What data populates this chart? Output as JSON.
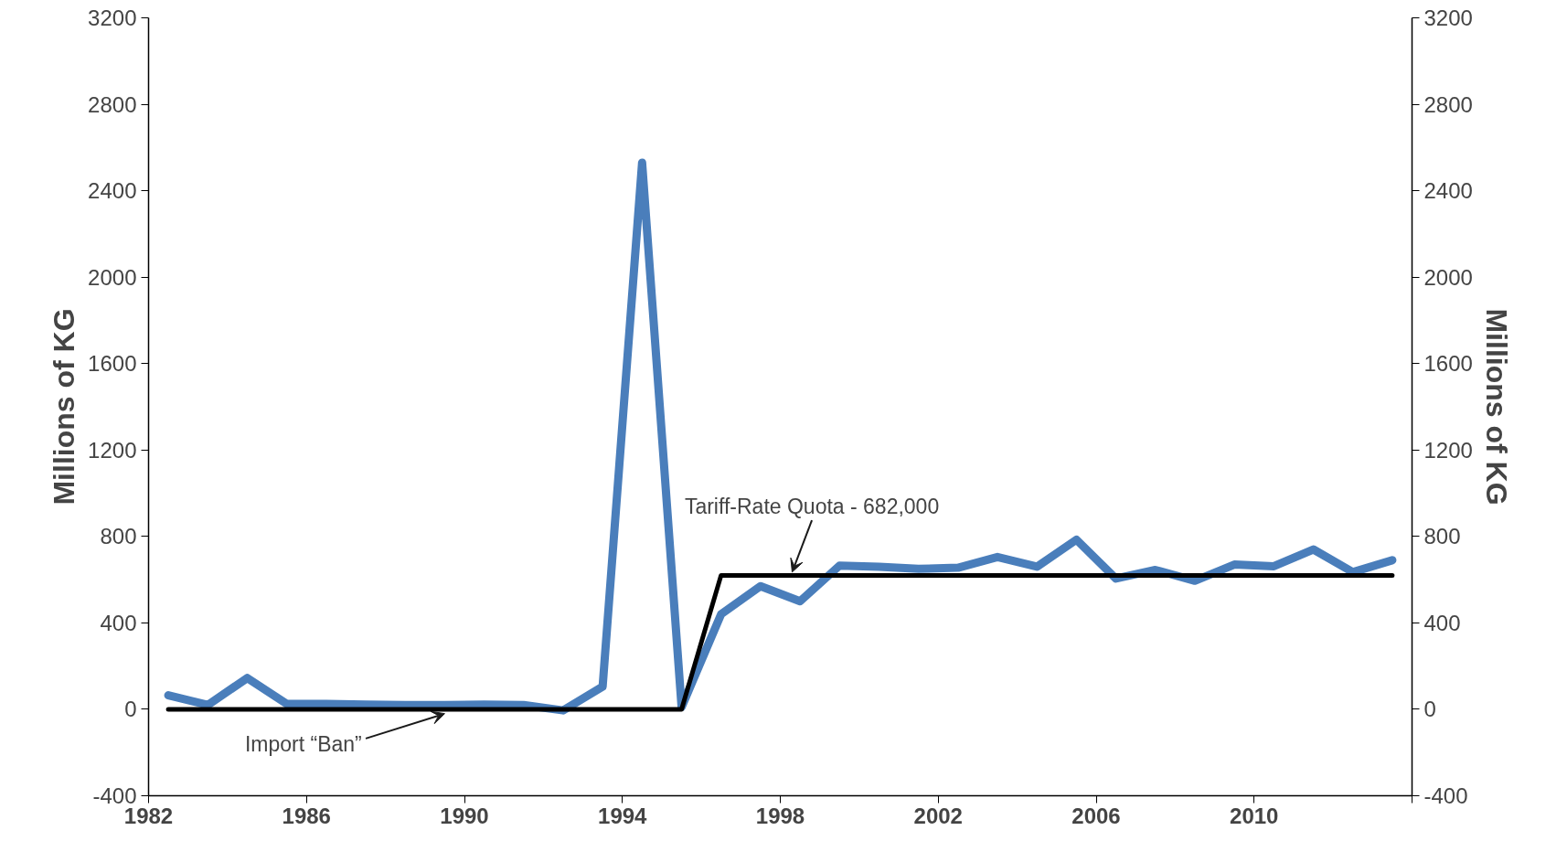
{
  "chart_data": {
    "type": "line",
    "ylabel": "Millions of KG",
    "y2label": "Millions of KG",
    "x": [
      1982.5,
      1983.5,
      1984.5,
      1985.5,
      1986.5,
      1987.5,
      1988.5,
      1989.5,
      1990.5,
      1991.5,
      1992.5,
      1993.5,
      1994.5,
      1995.5,
      1996.5,
      1997.5,
      1998.5,
      1999.5,
      2000.5,
      2001.5,
      2002.5,
      2003.5,
      2004.5,
      2005.5,
      2006.5,
      2007.5,
      2008.5,
      2009.5,
      2010.5,
      2011.5,
      2012.5,
      2013.5
    ],
    "series": [
      {
        "color": "#4a7ebb",
        "values": [
          65,
          20,
          145,
          25,
          25,
          22,
          20,
          20,
          22,
          20,
          -5,
          105,
          2530,
          10,
          440,
          570,
          500,
          665,
          660,
          650,
          655,
          705,
          660,
          785,
          605,
          645,
          595,
          670,
          662,
          740,
          635,
          690
        ]
      },
      {
        "color": "#000000",
        "values": [
          0,
          0,
          0,
          0,
          0,
          0,
          0,
          0,
          0,
          0,
          0,
          0,
          0,
          0,
          620,
          620,
          620,
          620,
          620,
          620,
          620,
          620,
          620,
          620,
          620,
          620,
          620,
          620,
          620,
          620,
          620,
          620
        ]
      }
    ],
    "xlim": [
      1982,
      2014
    ],
    "xticks": [
      1982,
      1986,
      1990,
      1994,
      1998,
      2002,
      2006,
      2010,
      {
        "value": 2014,
        "label": null
      }
    ],
    "ylim": [
      -400,
      3200
    ],
    "yticks": [
      -400,
      0,
      400,
      800,
      1200,
      1600,
      2000,
      2400,
      2800,
      3200
    ],
    "y2lim": [
      -400,
      3200
    ],
    "y2ticks": [
      -400,
      0,
      400,
      800,
      1200,
      1600,
      2000,
      2400,
      2800,
      3200
    ],
    "annotations": [
      {
        "text": "Import “Ban”",
        "x": 1989.5,
        "y": 0
      },
      {
        "text": "Tariff-Rate Quota - 682,000",
        "x": 1998.3,
        "y": 620
      }
    ],
    "grid": false,
    "marker": "none",
    "line_style": "solid"
  }
}
